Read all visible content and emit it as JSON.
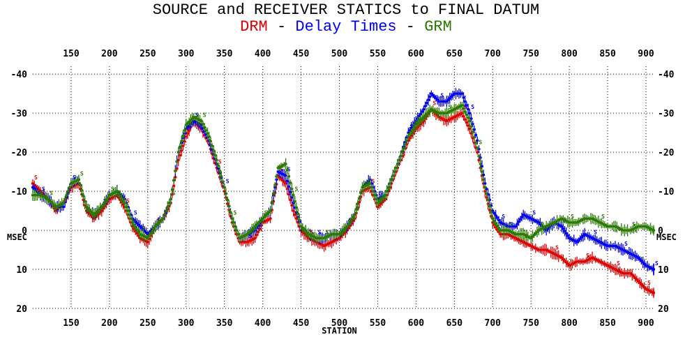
{
  "title": "SOURCE and RECEIVER STATICS to FINAL DATUM",
  "subtitle": {
    "drm": "DRM",
    "sep1": " - ",
    "delay": "Delay Times",
    "sep2": " - ",
    "grm": "GRM"
  },
  "colors": {
    "drm": "#e00000",
    "delay": "#0000ee",
    "grm": "#2a7a00"
  },
  "chart_data": {
    "type": "scatter",
    "title": "SOURCE and RECEIVER STATICS to FINAL DATUM",
    "xlabel": "STATION",
    "ylabel": "MSEC",
    "xlim": [
      100,
      910
    ],
    "ylim": [
      20,
      -42
    ],
    "y_inverted": true,
    "grid": true,
    "xticks": [
      150,
      200,
      250,
      300,
      350,
      400,
      450,
      500,
      550,
      600,
      650,
      700,
      750,
      800,
      850,
      900
    ],
    "yticks": [
      -40,
      -30,
      -20,
      -10,
      0,
      10,
      20
    ],
    "marker_labels": [
      "S",
      "R"
    ],
    "series": [
      {
        "name": "DRM",
        "color": "#e00000",
        "x": [
          100,
          110,
          120,
          130,
          140,
          150,
          160,
          170,
          180,
          190,
          200,
          210,
          220,
          230,
          240,
          250,
          260,
          270,
          280,
          290,
          300,
          310,
          320,
          330,
          340,
          350,
          360,
          370,
          380,
          390,
          400,
          410,
          420,
          430,
          440,
          450,
          460,
          470,
          480,
          490,
          500,
          510,
          520,
          530,
          540,
          550,
          560,
          570,
          580,
          590,
          600,
          610,
          620,
          630,
          640,
          650,
          660,
          670,
          680,
          690,
          700,
          710,
          720,
          730,
          740,
          750,
          760,
          770,
          780,
          790,
          800,
          810,
          820,
          830,
          840,
          850,
          860,
          870,
          880,
          890,
          900,
          910
        ],
        "y": [
          -12,
          -10,
          -8,
          -5,
          -7,
          -11,
          -12,
          -5,
          -3,
          -5,
          -8,
          -9,
          -6,
          -1,
          2,
          3,
          -1,
          -3,
          -7,
          -18,
          -24,
          -28,
          -26,
          -22,
          -16,
          -10,
          -2,
          3,
          3,
          2,
          -2,
          -3,
          -14,
          -12,
          -5,
          0,
          2,
          3,
          4,
          3,
          2,
          0,
          -3,
          -10,
          -11,
          -6,
          -8,
          -13,
          -18,
          -23,
          -26,
          -28,
          -31,
          -29,
          -28,
          -29,
          -30,
          -26,
          -20,
          -10,
          -2,
          1,
          1,
          2,
          3,
          4,
          5,
          5,
          6,
          7,
          9,
          8,
          8,
          7,
          8,
          9,
          10,
          11,
          11,
          13,
          15,
          16
        ]
      },
      {
        "name": "Delay Times",
        "color": "#0000ee",
        "x": [
          100,
          110,
          120,
          130,
          140,
          150,
          160,
          170,
          180,
          190,
          200,
          210,
          220,
          230,
          240,
          250,
          260,
          270,
          280,
          290,
          300,
          310,
          320,
          330,
          340,
          350,
          360,
          370,
          380,
          390,
          400,
          410,
          420,
          430,
          440,
          450,
          460,
          470,
          480,
          490,
          500,
          510,
          520,
          530,
          540,
          550,
          560,
          570,
          580,
          590,
          600,
          610,
          620,
          630,
          640,
          650,
          660,
          670,
          680,
          690,
          700,
          710,
          720,
          730,
          740,
          750,
          760,
          770,
          780,
          790,
          800,
          810,
          820,
          830,
          840,
          850,
          860,
          870,
          880,
          890,
          900,
          910
        ],
        "y": [
          -11,
          -9,
          -8,
          -6,
          -6,
          -12,
          -13,
          -6,
          -4,
          -6,
          -9,
          -10,
          -8,
          -3,
          -1,
          1,
          -1,
          -3,
          -8,
          -20,
          -26,
          -28,
          -27,
          -23,
          -17,
          -11,
          -3,
          2,
          1,
          0,
          -3,
          -5,
          -15,
          -14,
          -7,
          -1,
          1,
          2,
          2,
          1,
          1,
          -1,
          -4,
          -11,
          -13,
          -8,
          -9,
          -14,
          -19,
          -25,
          -28,
          -31,
          -35,
          -33,
          -33,
          -35,
          -35,
          -30,
          -23,
          -12,
          -5,
          -2,
          -1,
          -1,
          -4,
          -3,
          -2,
          0,
          -2,
          -1,
          2,
          3,
          1,
          2,
          3,
          4,
          4,
          5,
          6,
          7,
          9,
          10
        ]
      },
      {
        "name": "GRM",
        "color": "#2a7a00",
        "x": [
          100,
          110,
          120,
          130,
          140,
          150,
          160,
          170,
          180,
          190,
          200,
          210,
          220,
          230,
          240,
          250,
          260,
          270,
          280,
          290,
          300,
          310,
          320,
          330,
          340,
          350,
          360,
          370,
          380,
          390,
          400,
          410,
          420,
          430,
          440,
          450,
          460,
          470,
          480,
          490,
          500,
          510,
          520,
          530,
          540,
          550,
          560,
          570,
          580,
          590,
          600,
          610,
          620,
          630,
          640,
          650,
          660,
          670,
          680,
          690,
          700,
          710,
          720,
          730,
          740,
          750,
          760,
          770,
          780,
          790,
          800,
          810,
          820,
          830,
          840,
          850,
          860,
          870,
          880,
          890,
          900,
          910
        ],
        "y": [
          -9,
          -9,
          -8,
          -6,
          -7,
          -12,
          -13,
          -6,
          -4,
          -6,
          -9,
          -10,
          -7,
          -2,
          1,
          2,
          -1,
          -3,
          -8,
          -20,
          -27,
          -29,
          -28,
          -24,
          -18,
          -11,
          -3,
          2,
          1,
          -1,
          -3,
          -5,
          -16,
          -17,
          -9,
          -1,
          1,
          2,
          2,
          1,
          1,
          -1,
          -4,
          -11,
          -12,
          -7,
          -9,
          -14,
          -19,
          -24,
          -27,
          -29,
          -31,
          -30,
          -30,
          -31,
          -32,
          -28,
          -21,
          -11,
          -3,
          0,
          0,
          1,
          1,
          2,
          0,
          -1,
          -2,
          -3,
          -2,
          -2,
          -3,
          -3,
          -2,
          -1,
          -1,
          0,
          0,
          -1,
          -1,
          0
        ]
      }
    ]
  }
}
